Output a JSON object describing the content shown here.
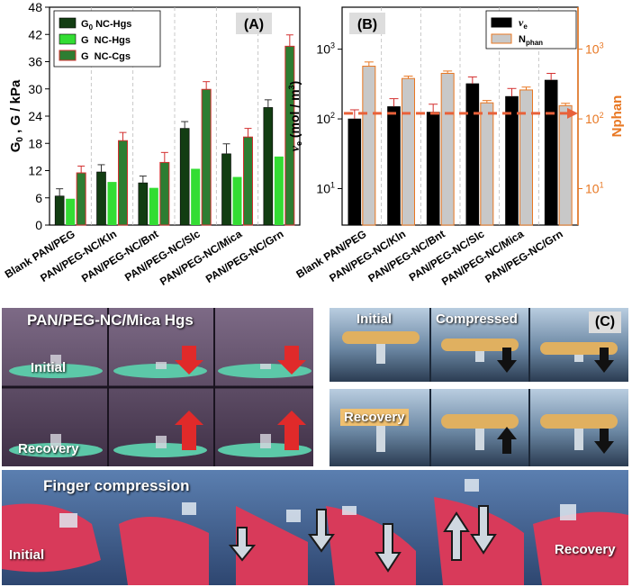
{
  "chart_data": [
    {
      "type": "bar",
      "panel_label": "(A)",
      "categories": [
        "Blank PAN/PEG",
        "PAN/PEG-NC/Kln",
        "PAN/PEG-NC/Bnt",
        "PAN/PEG-NC/Slc",
        "PAN/PEG-NC/Mica",
        "PAN/PEG-NC/Grn"
      ],
      "ylabel": "G0 , G / kPa",
      "ylim": [
        0,
        48
      ],
      "yticks": [
        0,
        6,
        12,
        18,
        24,
        30,
        36,
        42,
        48
      ],
      "legend_position": "top-left",
      "series": [
        {
          "name": "G0 NC-Hgs",
          "values": [
            6.4,
            11.7,
            9.3,
            21.3,
            15.7,
            25.9
          ],
          "errors": [
            1.6,
            1.6,
            1.5,
            1.5,
            2.2,
            1.7
          ],
          "color": "#123d12"
        },
        {
          "name": "G  NC-Hgs",
          "values": [
            5.8,
            9.5,
            8.2,
            12.4,
            10.6,
            15.1
          ],
          "errors": [
            0,
            0,
            0,
            0,
            0,
            0
          ],
          "color": "#33dd33"
        },
        {
          "name": "G  NC-Cgs",
          "values": [
            11.5,
            18.6,
            13.8,
            29.9,
            19.4,
            39.4
          ],
          "errors": [
            1.5,
            1.8,
            2.2,
            1.7,
            1.9,
            2.5
          ],
          "color": "#2e7d32"
        }
      ]
    },
    {
      "type": "bar",
      "panel_label": "(B)",
      "categories": [
        "Blank PAN/PEG",
        "PAN/PEG-NC/Kln",
        "PAN/PEG-NC/Bnt",
        "PAN/PEG-NC/Slc",
        "PAN/PEG-NC/Mica",
        "PAN/PEG-NC/Grn"
      ],
      "ylabel_left": "νe (mol / m3)",
      "ylabel_right": "Nphan",
      "yscale": "log",
      "ylim": [
        3,
        4000
      ],
      "yticks": [
        "10^1",
        "10^2",
        "10^3"
      ],
      "legend_position": "top-right",
      "series": [
        {
          "name": "νe",
          "values": [
            100,
            150,
            125,
            320,
            210,
            360
          ],
          "errors_pct": [
            0.35,
            0.3,
            0.3,
            0.25,
            0.3,
            0.25
          ],
          "color": "#000000"
        },
        {
          "name": "Nphan",
          "values": [
            570,
            380,
            450,
            170,
            260,
            155
          ],
          "errors_pct": [
            0.15,
            0.08,
            0.08,
            0.08,
            0.1,
            0.08
          ],
          "color": "#c8c8c8"
        }
      ],
      "reference_line": 120
    }
  ],
  "photos": {
    "mica_panel": {
      "title": "PAN/PEG-NC/Mica Hgs",
      "initial": "Initial",
      "recovery": "Recovery"
    },
    "panel_c": {
      "label": "(C)",
      "initial": "Initial",
      "compressed": "Compressed",
      "recovery": "Recovery"
    },
    "finger_panel": {
      "title": "Finger compression",
      "initial": "Initial",
      "recovery": "Recovery"
    }
  },
  "colors": {
    "right_axis": "#e87722",
    "arrow_red": "#e02a2a",
    "glove": "#d83a5a"
  }
}
